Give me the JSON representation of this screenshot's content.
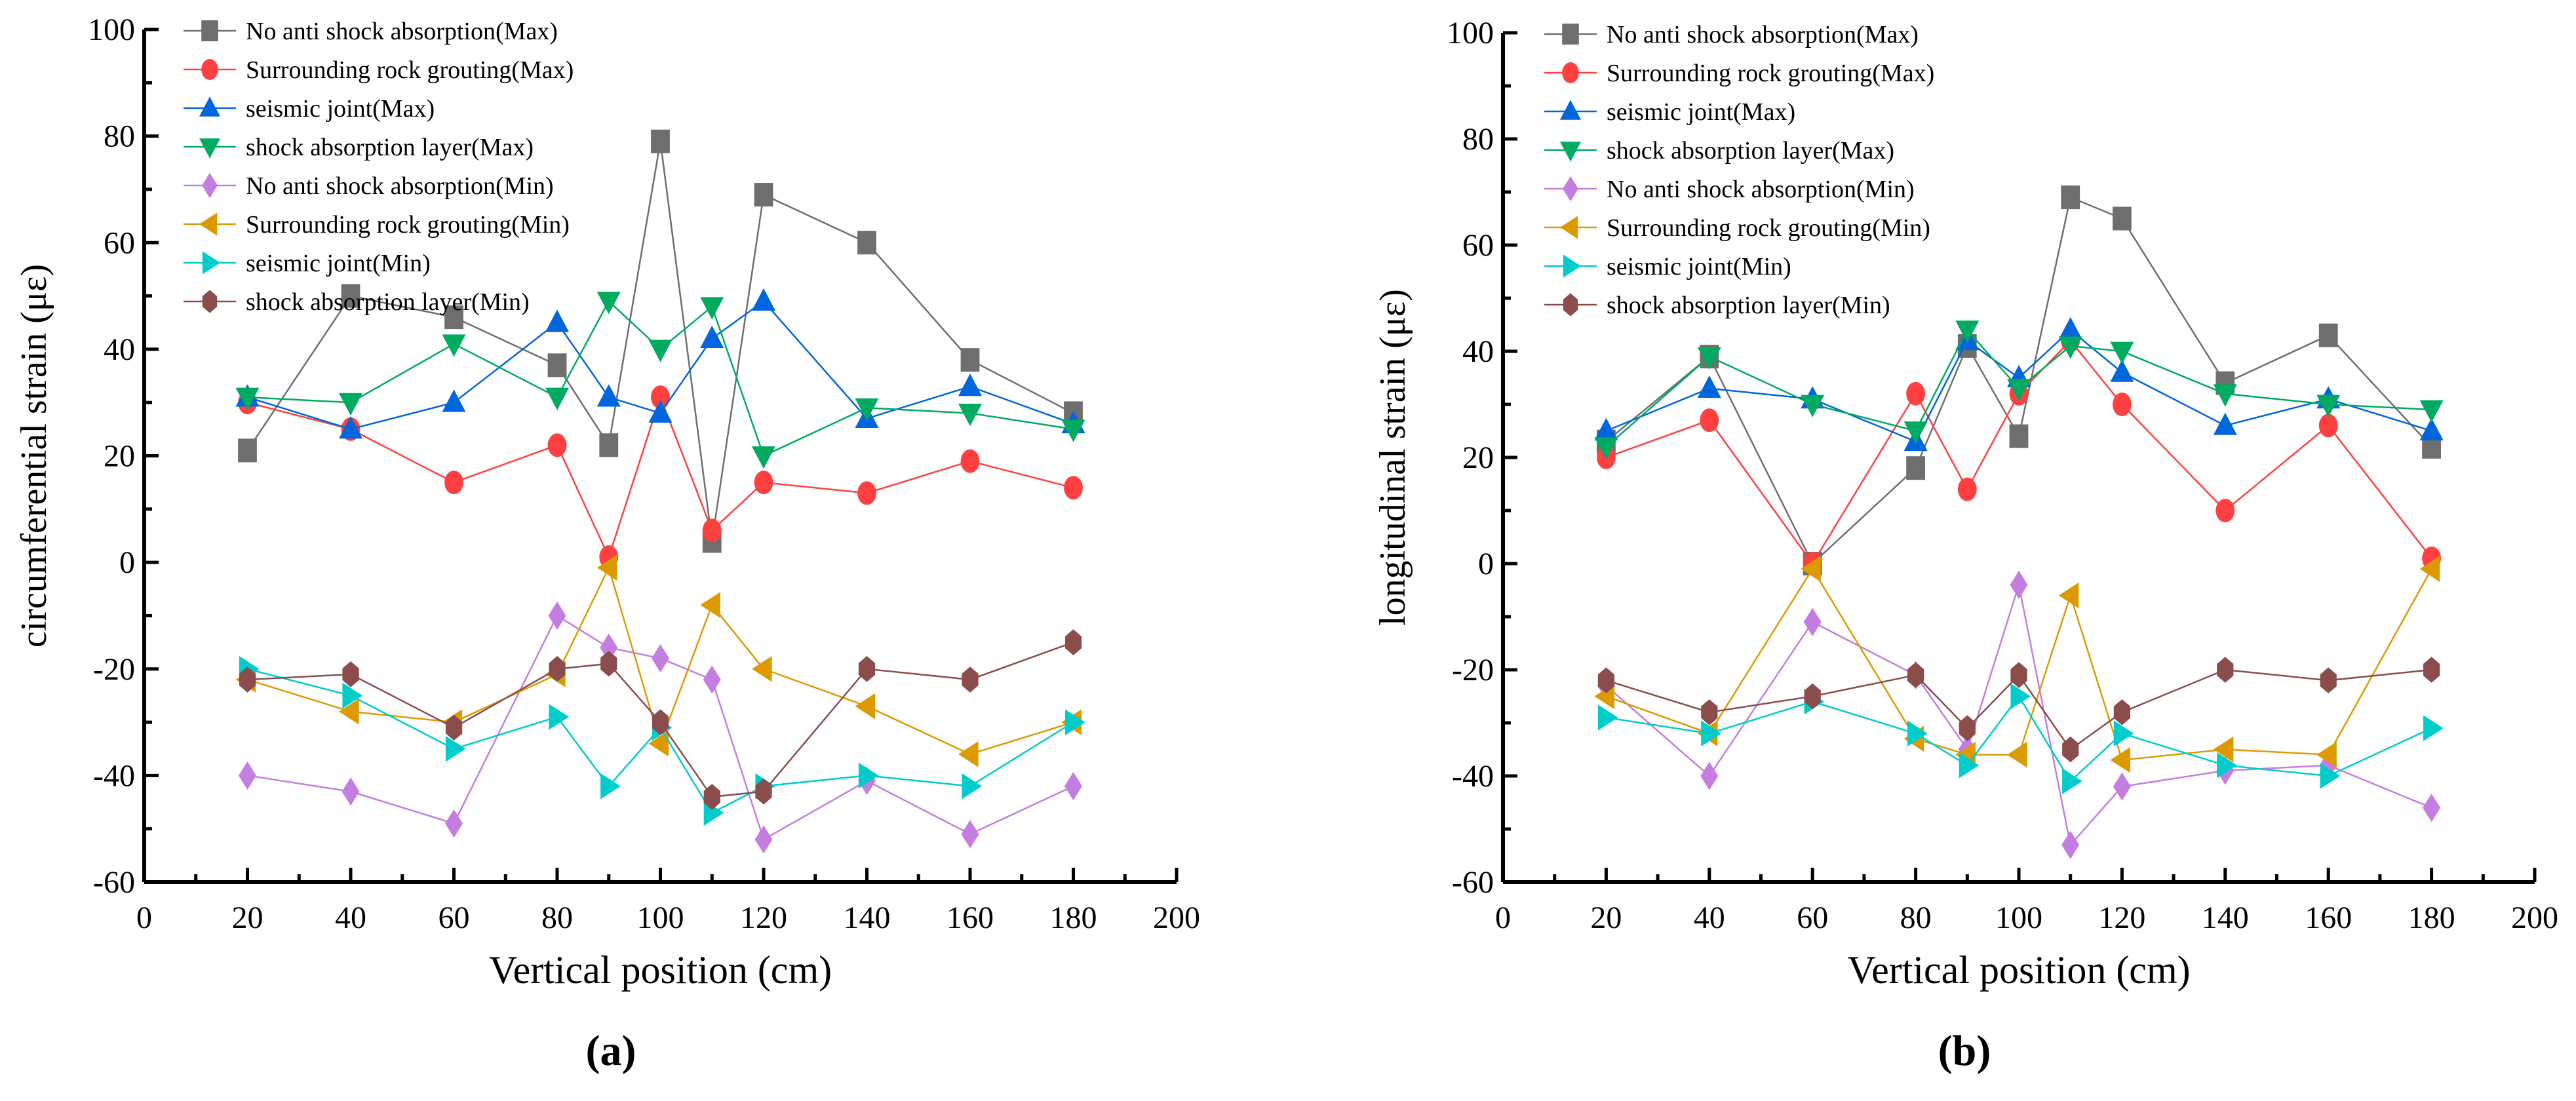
{
  "chart_data": [
    {
      "type": "line",
      "panel_label": "(a)",
      "xlabel": "Vertical position (cm)",
      "ylabel": "circumferential strain (με)",
      "xlim": [
        0,
        200
      ],
      "ylim": [
        -60,
        100
      ],
      "xticks": [
        0,
        20,
        40,
        60,
        80,
        100,
        120,
        140,
        160,
        180,
        200
      ],
      "yticks": [
        -60,
        -40,
        -20,
        0,
        20,
        40,
        60,
        80,
        100
      ],
      "legend_position": "top-left",
      "x": [
        20,
        40,
        60,
        80,
        90,
        100,
        110,
        120,
        140,
        160,
        180
      ],
      "series": [
        {
          "name": "No anti shock absorption(Max)",
          "color": "#6e6e6e",
          "marker": "square",
          "values": [
            21,
            50,
            46,
            37,
            22,
            79,
            4,
            69,
            60,
            38,
            28
          ]
        },
        {
          "name": "Surrounding rock grouting(Max)",
          "color": "#ff4040",
          "marker": "circle",
          "values": [
            30,
            25,
            15,
            22,
            1,
            31,
            6,
            15,
            13,
            19,
            14
          ]
        },
        {
          "name": "seismic joint(Max)",
          "color": "#0066dd",
          "marker": "triangle-up",
          "values": [
            31,
            25,
            30,
            45,
            31,
            28,
            42,
            49,
            27,
            33,
            26
          ]
        },
        {
          "name": "shock absorption layer(Max)",
          "color": "#00aa60",
          "marker": "triangle-down",
          "values": [
            31,
            30,
            41,
            31,
            49,
            40,
            48,
            20,
            29,
            28,
            25
          ]
        },
        {
          "name": "No anti shock absorption(Min)",
          "color": "#c47de0",
          "marker": "diamond",
          "values": [
            -40,
            -43,
            -49,
            -10,
            -16,
            -18,
            -22,
            -52,
            -41,
            -51,
            -42
          ]
        },
        {
          "name": "Surrounding rock grouting(Min)",
          "color": "#dd9a00",
          "marker": "triangle-left",
          "values": [
            -22,
            -28,
            -30,
            -21,
            -1,
            -34,
            -8,
            -20,
            -27,
            -36,
            -30
          ]
        },
        {
          "name": "seismic joint(Min)",
          "color": "#00cccc",
          "marker": "triangle-right",
          "values": [
            -20,
            -25,
            -35,
            -29,
            -42,
            -31,
            -47,
            -42,
            -40,
            -42,
            -30
          ]
        },
        {
          "name": "shock absorption layer(Min)",
          "color": "#8b4c4c",
          "marker": "hexagon",
          "values": [
            -22,
            -21,
            -31,
            -20,
            -19,
            -30,
            -44,
            -43,
            -20,
            -22,
            -15
          ]
        }
      ]
    },
    {
      "type": "line",
      "panel_label": "(b)",
      "xlabel": "Vertical position (cm)",
      "ylabel": "longitudinal strain (με)",
      "xlim": [
        0,
        200
      ],
      "ylim": [
        -60,
        100
      ],
      "xticks": [
        0,
        20,
        40,
        60,
        80,
        100,
        120,
        140,
        160,
        180,
        200
      ],
      "yticks": [
        -60,
        -40,
        -20,
        0,
        20,
        40,
        60,
        80,
        100
      ],
      "legend_position": "top-left",
      "x": [
        20,
        40,
        60,
        80,
        90,
        100,
        110,
        120,
        140,
        160,
        180
      ],
      "series": [
        {
          "name": "No anti shock absorption(Max)",
          "color": "#6e6e6e",
          "marker": "square",
          "values": [
            23,
            39,
            0,
            18,
            41,
            24,
            69,
            65,
            34,
            43,
            22
          ]
        },
        {
          "name": "Surrounding rock grouting(Max)",
          "color": "#ff4040",
          "marker": "circle",
          "values": [
            20,
            27,
            0,
            32,
            14,
            32,
            42,
            30,
            10,
            26,
            1
          ]
        },
        {
          "name": "seismic joint(Max)",
          "color": "#0066dd",
          "marker": "triangle-up",
          "values": [
            25,
            33,
            31,
            23,
            42,
            35,
            44,
            36,
            26,
            31,
            25
          ]
        },
        {
          "name": "shock absorption layer(Max)",
          "color": "#00aa60",
          "marker": "triangle-down",
          "values": [
            22,
            39,
            30,
            25,
            44,
            33,
            41,
            40,
            32,
            30,
            29
          ]
        },
        {
          "name": "No anti shock absorption(Min)",
          "color": "#c47de0",
          "marker": "diamond",
          "values": [
            -23,
            -40,
            -11,
            -21,
            -35,
            -4,
            -53,
            -42,
            -39,
            -38,
            -46
          ]
        },
        {
          "name": "Surrounding rock grouting(Min)",
          "color": "#dd9a00",
          "marker": "triangle-left",
          "values": [
            -25,
            -32,
            -1,
            -33,
            -36,
            -36,
            -6,
            -37,
            -35,
            -36,
            -1
          ]
        },
        {
          "name": "seismic joint(Min)",
          "color": "#00cccc",
          "marker": "triangle-right",
          "values": [
            -29,
            -32,
            -26,
            -32,
            -38,
            -25,
            -41,
            -32,
            -38,
            -40,
            -31
          ]
        },
        {
          "name": "shock absorption layer(Min)",
          "color": "#8b4c4c",
          "marker": "hexagon",
          "values": [
            -22,
            -28,
            -25,
            -21,
            -31,
            -21,
            -35,
            -28,
            -20,
            -22,
            -20
          ]
        }
      ]
    }
  ]
}
